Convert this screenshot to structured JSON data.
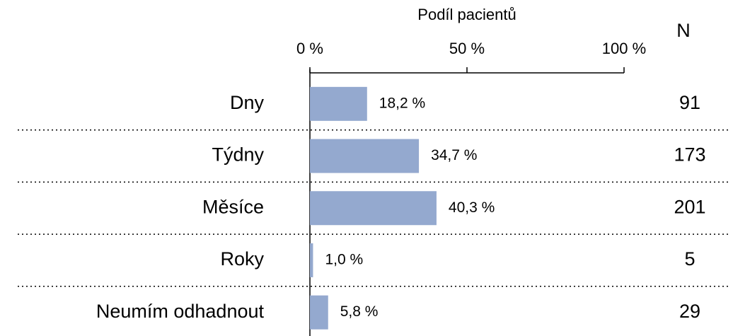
{
  "chart_data": {
    "type": "bar",
    "orientation": "horizontal",
    "xlabel": "Podíl pacientů",
    "categories": [
      "Dny",
      "Týdny",
      "Měsíce",
      "Roky",
      "Neumím odhadnout"
    ],
    "values": [
      18.2,
      34.7,
      40.3,
      1.0,
      5.8
    ],
    "value_labels": [
      "18,2 %",
      "34,7 %",
      "40,3 %",
      "1,0 %",
      "5,8 %"
    ],
    "color": "#94a9cf",
    "xlim": [
      0,
      100
    ],
    "xticks": [
      {
        "value": 0,
        "label": "0 %"
      },
      {
        "value": 50,
        "label": "50 %"
      },
      {
        "value": 100,
        "label": "100 %"
      }
    ],
    "n_header": "N",
    "n_values": [
      91,
      173,
      201,
      5,
      29
    ]
  }
}
